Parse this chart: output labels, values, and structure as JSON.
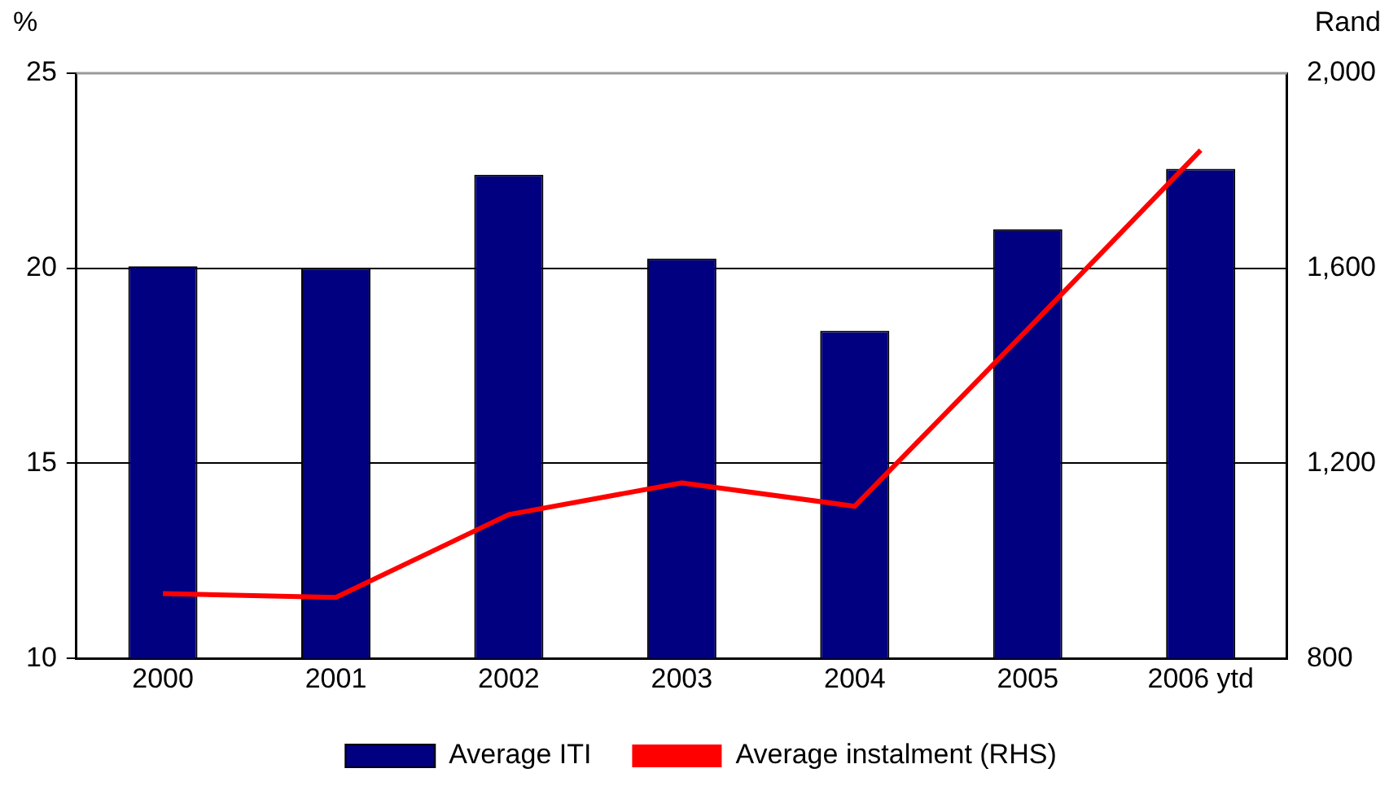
{
  "chart_data": {
    "type": "bar",
    "ylabel": "%",
    "y2label": "Rand",
    "categories": [
      "2000",
      "2001",
      "2002",
      "2003",
      "2004",
      "2005",
      "2006 ytd"
    ],
    "series": [
      {
        "name": "Average ITI",
        "color": "#000080",
        "values": [
          20.05,
          20.0,
          22.4,
          20.25,
          18.4,
          21.0,
          22.55
        ]
      },
      {
        "name": "Average instalment (RHS)",
        "type": "line",
        "axis": "y2",
        "color": "#ff0000",
        "values": [
          933,
          925,
          1095,
          1160,
          1112,
          1475,
          1842
        ]
      }
    ],
    "ylim": [
      10,
      25
    ],
    "yticks": [
      10,
      15,
      20,
      25
    ],
    "y2lim": [
      800,
      2000
    ],
    "y2ticks": [
      {
        "value": 800,
        "label": "800"
      },
      {
        "value": 1200,
        "label": "1,200"
      },
      {
        "value": 1600,
        "label": "1,600"
      },
      {
        "value": 2000,
        "label": "2,000"
      }
    ],
    "grid": "y",
    "legend": "bottom",
    "marker": "none",
    "line_style": "solid"
  }
}
